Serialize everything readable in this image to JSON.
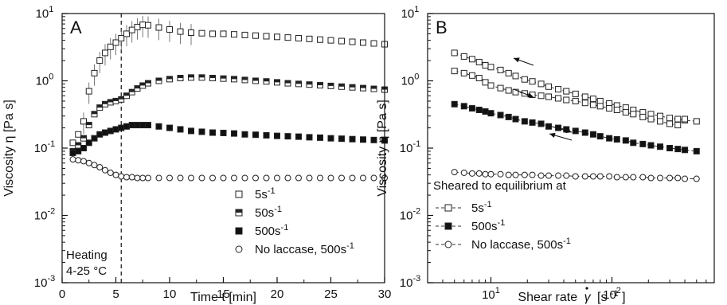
{
  "chart_data": [
    {
      "type": "scatter",
      "panel_label": "A",
      "xlabel": "Time t [min]",
      "ylabel": "Viscosity η [Pa s]",
      "xlim": [
        0,
        30
      ],
      "ylim": [
        0.001,
        10
      ],
      "yscale": "log",
      "x_ticks": [
        "0",
        "5",
        "10",
        "15",
        "20",
        "25",
        "30"
      ],
      "y_ticks": [
        {
          "base": "10",
          "exp": "-3"
        },
        {
          "base": "10",
          "exp": "-2"
        },
        {
          "base": "10",
          "exp": "-1"
        },
        {
          "base": "10",
          "exp": "0"
        },
        {
          "base": "10",
          "exp": "1"
        }
      ],
      "annotation_lines": [
        "Heating",
        "4-25 °C"
      ],
      "vline_x": 5.5,
      "legend_position": "lower-right",
      "series": [
        {
          "name": "5s",
          "name_sup": "-1",
          "marker": "open-square",
          "x": [
            1,
            1.5,
            2,
            2.5,
            3,
            3.5,
            4,
            4.5,
            5,
            5.5,
            6,
            6.5,
            7,
            7.5,
            8,
            9,
            10,
            11,
            12,
            13,
            14,
            15,
            16,
            17,
            18,
            19,
            20,
            21,
            22,
            23,
            24,
            25,
            26,
            27,
            28,
            29,
            30
          ],
          "y": [
            0.12,
            0.16,
            0.25,
            0.7,
            1.3,
            2.0,
            2.6,
            3.2,
            3.7,
            4.3,
            5.0,
            5.7,
            6.3,
            6.8,
            6.7,
            6.2,
            5.8,
            5.4,
            5.2,
            5.1,
            5.0,
            5.0,
            4.9,
            4.8,
            4.7,
            4.6,
            4.5,
            4.4,
            4.3,
            4.2,
            4.1,
            4.0,
            3.9,
            3.8,
            3.7,
            3.6,
            3.5
          ]
        },
        {
          "name": "50s",
          "name_sup": "-1",
          "marker": "half-square",
          "x": [
            1,
            1.5,
            2,
            2.5,
            3,
            3.5,
            4,
            4.5,
            5,
            5.5,
            6,
            6.5,
            7,
            7.5,
            8,
            9,
            10,
            11,
            12,
            13,
            14,
            15,
            16,
            17,
            18,
            19,
            20,
            21,
            22,
            23,
            24,
            25,
            26,
            27,
            28,
            29,
            30
          ],
          "y": [
            0.09,
            0.11,
            0.14,
            0.22,
            0.32,
            0.4,
            0.45,
            0.48,
            0.5,
            0.53,
            0.6,
            0.68,
            0.77,
            0.85,
            0.92,
            1.0,
            1.06,
            1.1,
            1.12,
            1.12,
            1.1,
            1.08,
            1.06,
            1.03,
            1.0,
            0.98,
            0.95,
            0.92,
            0.9,
            0.88,
            0.86,
            0.84,
            0.82,
            0.8,
            0.78,
            0.76,
            0.74
          ]
        },
        {
          "name": "500s",
          "name_sup": "-1",
          "marker": "filled-square",
          "x": [
            1,
            1.5,
            2,
            2.5,
            3,
            3.5,
            4,
            4.5,
            5,
            5.5,
            6,
            6.5,
            7,
            7.5,
            8,
            9,
            10,
            11,
            12,
            13,
            14,
            15,
            16,
            17,
            18,
            19,
            20,
            21,
            22,
            23,
            24,
            25,
            26,
            27,
            28,
            29,
            30
          ],
          "y": [
            0.085,
            0.09,
            0.1,
            0.12,
            0.14,
            0.16,
            0.17,
            0.18,
            0.19,
            0.2,
            0.21,
            0.22,
            0.22,
            0.22,
            0.22,
            0.21,
            0.2,
            0.19,
            0.18,
            0.175,
            0.17,
            0.168,
            0.165,
            0.16,
            0.158,
            0.155,
            0.152,
            0.15,
            0.148,
            0.145,
            0.143,
            0.14,
            0.138,
            0.136,
            0.134,
            0.132,
            0.13
          ]
        },
        {
          "name": "No laccase, 500s",
          "name_sup": "-1",
          "marker": "open-circle",
          "x": [
            1,
            1.5,
            2,
            2.5,
            3,
            3.5,
            4,
            4.5,
            5,
            5.5,
            6,
            6.5,
            7,
            7.5,
            8,
            9,
            10,
            11,
            12,
            13,
            14,
            15,
            16,
            17,
            18,
            19,
            20,
            21,
            22,
            23,
            24,
            25,
            26,
            27,
            28,
            29,
            30
          ],
          "y": [
            0.068,
            0.066,
            0.064,
            0.06,
            0.056,
            0.052,
            0.047,
            0.043,
            0.04,
            0.038,
            0.037,
            0.037,
            0.036,
            0.036,
            0.036,
            0.036,
            0.036,
            0.036,
            0.036,
            0.036,
            0.036,
            0.036,
            0.036,
            0.036,
            0.036,
            0.036,
            0.036,
            0.036,
            0.036,
            0.036,
            0.036,
            0.036,
            0.036,
            0.036,
            0.036,
            0.036,
            0.036
          ]
        }
      ]
    },
    {
      "type": "line",
      "panel_label": "B",
      "xlabel": "Shear rate",
      "xlabel_symbol": "γ",
      "xlabel_units": "[s",
      "xlabel_units_sup": "-1",
      "xlabel_units_end": "]",
      "ylabel": "Viscosity η [Pa s]",
      "xscale": "log",
      "yscale": "log",
      "xlim": [
        3,
        700
      ],
      "ylim": [
        0.001,
        10
      ],
      "x_ticks": [
        {
          "value": 10,
          "base": "10",
          "exp": "1"
        },
        {
          "value": 100,
          "base": "10",
          "exp": "2"
        }
      ],
      "y_ticks": [
        {
          "base": "10",
          "exp": "-3"
        },
        {
          "base": "10",
          "exp": "-2"
        },
        {
          "base": "10",
          "exp": "-1"
        },
        {
          "base": "10",
          "exp": "0"
        },
        {
          "base": "10",
          "exp": "1"
        }
      ],
      "legend_title": "Sheared to equilibrium at",
      "legend_position": "lower-left",
      "series": [
        {
          "name": "5s",
          "name_sup": "-1",
          "marker": "open-square",
          "x": [
            5,
            6,
            7,
            8,
            9,
            10,
            12,
            14,
            16,
            19,
            22,
            26,
            30,
            36,
            42,
            50,
            60,
            70,
            80,
            95,
            110,
            130,
            150,
            180,
            210,
            250,
            300,
            350,
            400,
            500
          ],
          "y": [
            2.6,
            2.3,
            2.1,
            1.9,
            1.7,
            1.6,
            1.45,
            1.3,
            1.18,
            1.05,
            0.98,
            0.9,
            0.82,
            0.75,
            0.7,
            0.64,
            0.58,
            0.54,
            0.5,
            0.46,
            0.43,
            0.4,
            0.37,
            0.34,
            0.32,
            0.3,
            0.28,
            0.27,
            0.26,
            0.25
          ]
        },
        {
          "name": "5s",
          "name_sup": "-1",
          "marker": "open-square",
          "legend": false,
          "x": [
            5,
            6,
            7,
            8,
            9,
            10,
            12,
            14,
            16,
            19,
            22,
            26,
            30,
            36,
            42,
            50,
            60,
            70,
            80,
            95,
            110,
            130,
            150,
            180,
            210,
            250,
            300,
            350,
            400
          ],
          "y": [
            1.4,
            1.3,
            1.2,
            1.1,
            0.95,
            0.85,
            0.78,
            0.72,
            0.68,
            0.65,
            0.62,
            0.6,
            0.58,
            0.55,
            0.52,
            0.5,
            0.47,
            0.44,
            0.42,
            0.39,
            0.37,
            0.34,
            0.32,
            0.29,
            0.27,
            0.25,
            0.23,
            0.22,
            0.27
          ]
        },
        {
          "name": "500s",
          "name_sup": "-1",
          "marker": "filled-square",
          "x": [
            5,
            6,
            7,
            8,
            9,
            10,
            12,
            14,
            16,
            19,
            22,
            26,
            30,
            36,
            42,
            50,
            60,
            70,
            80,
            95,
            110,
            130,
            150,
            180,
            210,
            250,
            300,
            350,
            400,
            500
          ],
          "y": [
            0.45,
            0.42,
            0.39,
            0.37,
            0.35,
            0.33,
            0.31,
            0.29,
            0.27,
            0.25,
            0.24,
            0.23,
            0.21,
            0.2,
            0.19,
            0.18,
            0.17,
            0.16,
            0.15,
            0.14,
            0.135,
            0.13,
            0.12,
            0.115,
            0.11,
            0.105,
            0.1,
            0.097,
            0.094,
            0.09
          ]
        },
        {
          "name": "No laccase, 500s",
          "name_sup": "-1",
          "marker": "open-circle",
          "x": [
            5,
            6,
            7,
            8,
            9,
            10,
            12,
            14,
            16,
            19,
            22,
            26,
            30,
            36,
            42,
            50,
            60,
            70,
            80,
            95,
            110,
            130,
            150,
            180,
            210,
            250,
            300,
            350,
            400,
            500
          ],
          "y": [
            0.044,
            0.043,
            0.042,
            0.042,
            0.041,
            0.041,
            0.041,
            0.04,
            0.04,
            0.04,
            0.04,
            0.039,
            0.039,
            0.039,
            0.039,
            0.038,
            0.038,
            0.038,
            0.038,
            0.038,
            0.037,
            0.037,
            0.037,
            0.037,
            0.036,
            0.036,
            0.036,
            0.036,
            0.035,
            0.035
          ]
        }
      ]
    }
  ]
}
